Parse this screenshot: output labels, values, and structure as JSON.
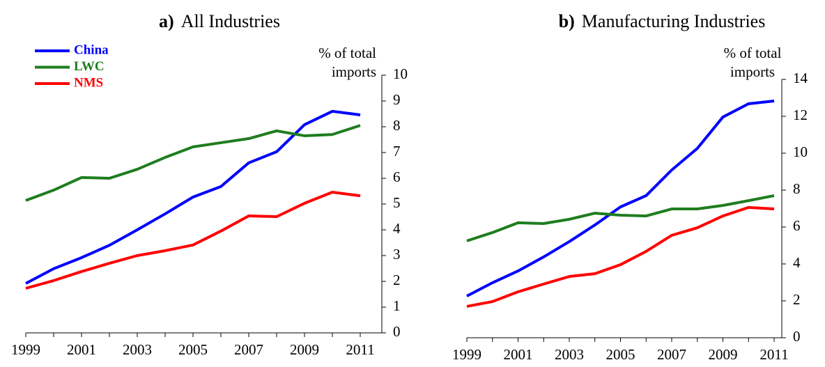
{
  "chart_data": [
    {
      "type": "line",
      "panel": "a)",
      "title": "All Industries",
      "y_label": "% of total imports",
      "x": [
        1999,
        2000,
        2001,
        2002,
        2003,
        2004,
        2005,
        2006,
        2007,
        2008,
        2009,
        2010,
        2011
      ],
      "xlim": [
        1999,
        2011
      ],
      "xticks": [
        1999,
        2001,
        2003,
        2005,
        2007,
        2009,
        2011
      ],
      "ylim": [
        0,
        10
      ],
      "yticks": [
        0,
        1,
        2,
        3,
        4,
        5,
        6,
        7,
        8,
        9,
        10
      ],
      "legend": "upper left",
      "series": [
        {
          "name": "China",
          "color": "#0000ff",
          "values": [
            1.92,
            2.49,
            2.92,
            3.4,
            4.0,
            4.62,
            5.27,
            5.68,
            6.6,
            7.03,
            8.08,
            8.6,
            8.46
          ]
        },
        {
          "name": "LWC",
          "color": "#1e7d1e",
          "values": [
            5.14,
            5.54,
            6.03,
            6.0,
            6.35,
            6.81,
            7.22,
            7.38,
            7.54,
            7.84,
            7.65,
            7.7,
            8.05
          ]
        },
        {
          "name": "NMS",
          "color": "#ff0000",
          "values": [
            1.73,
            2.03,
            2.38,
            2.7,
            3.0,
            3.19,
            3.41,
            3.95,
            4.54,
            4.51,
            5.03,
            5.46,
            5.32
          ]
        }
      ]
    },
    {
      "type": "line",
      "panel": "b)",
      "title": "Manufacturing Industries",
      "y_label": "% of total imports",
      "x": [
        1999,
        2000,
        2001,
        2002,
        2003,
        2004,
        2005,
        2006,
        2007,
        2008,
        2009,
        2010,
        2011
      ],
      "xlim": [
        1999,
        2011
      ],
      "xticks": [
        1999,
        2001,
        2003,
        2005,
        2007,
        2009,
        2011
      ],
      "ylim": [
        0,
        14
      ],
      "yticks": [
        0,
        2,
        4,
        6,
        8,
        10,
        12,
        14
      ],
      "legend": false,
      "series": [
        {
          "color": "#0000ff",
          "values": [
            2.26,
            2.98,
            3.62,
            4.38,
            5.21,
            6.11,
            7.09,
            7.7,
            9.09,
            10.26,
            11.96,
            12.68,
            12.83
          ]
        },
        {
          "color": "#1e7d1e",
          "values": [
            5.25,
            5.7,
            6.23,
            6.19,
            6.42,
            6.75,
            6.64,
            6.6,
            6.98,
            6.98,
            7.17,
            7.43,
            7.7
          ]
        },
        {
          "color": "#ff0000",
          "values": [
            1.7,
            1.96,
            2.49,
            2.91,
            3.32,
            3.47,
            3.96,
            4.68,
            5.55,
            5.96,
            6.6,
            7.06,
            6.98
          ]
        }
      ]
    }
  ]
}
